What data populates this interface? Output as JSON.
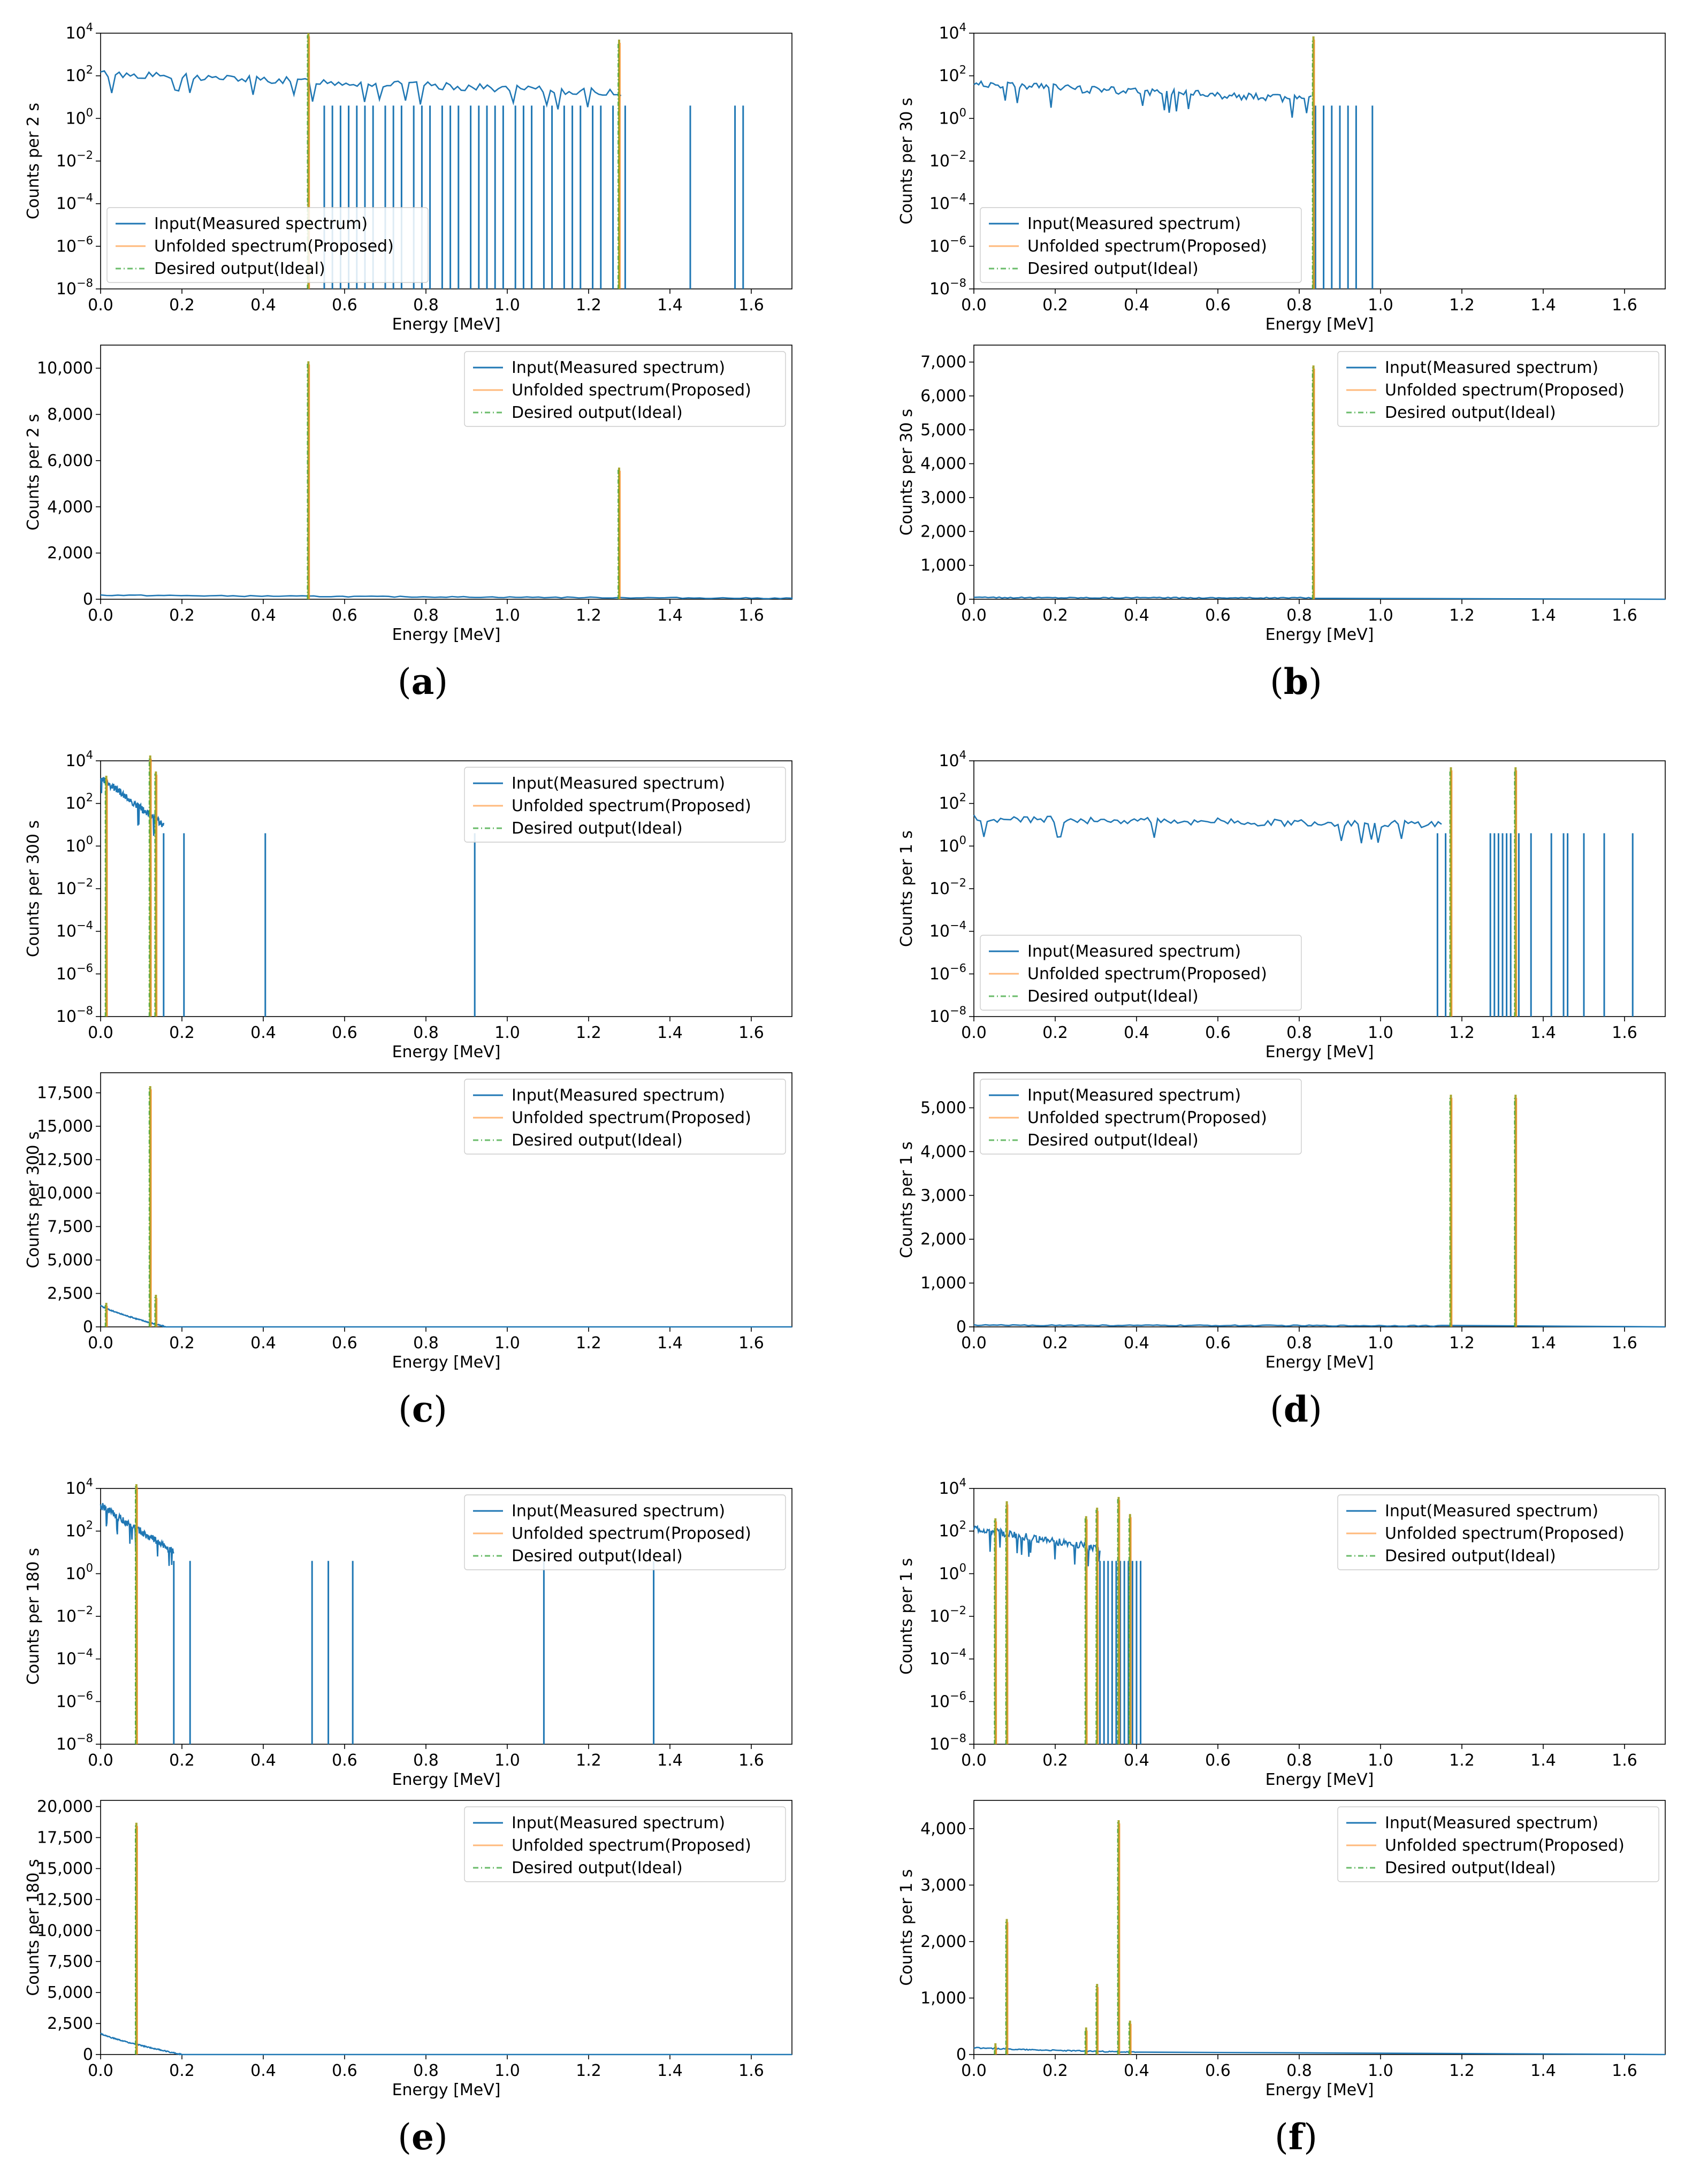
{
  "legend_labels": {
    "input": "Input(Measured spectrum)",
    "unfolded": "Unfolded spectrum(Proposed)",
    "desired": "Desired output(Ideal)"
  },
  "colors": {
    "input": "#1f77b4",
    "unfolded": "#ff7f0e",
    "desired": "#2ca02c",
    "overlap": "#a8a832"
  },
  "chart_data": [
    {
      "panel": "a",
      "label_open": "(",
      "label_letter": "a",
      "label_close": ")",
      "xlabel": "Energy [MeV]",
      "ylabel": "Counts per 2 s",
      "xlim": [
        0,
        1.7
      ],
      "xticks": [
        0,
        0.2,
        0.4,
        0.6,
        0.8,
        1.0,
        1.2,
        1.4,
        1.6
      ],
      "xtick_labels": [
        "0.0",
        "0.2",
        "0.4",
        "0.6",
        "0.8",
        "1.0",
        "1.2",
        "1.4",
        "1.6"
      ],
      "log_plot": {
        "type": "line",
        "yscale": "log",
        "ylim_exp": [
          -8,
          4
        ],
        "ytick_exps": [
          4,
          2,
          0,
          -2,
          -4,
          -6,
          -8
        ],
        "legend_loc": "lower-left",
        "input_background": {
          "start_exp": 2.1,
          "end_exp": 1.2,
          "end_energy": 1.28
        },
        "input_spikes": [
          0.55,
          0.57,
          0.59,
          0.61,
          0.63,
          0.65,
          0.67,
          0.7,
          0.72,
          0.74,
          0.77,
          0.79,
          0.81,
          0.84,
          0.86,
          0.88,
          0.91,
          0.93,
          0.95,
          0.97,
          0.99,
          1.02,
          1.04,
          1.06,
          1.09,
          1.11,
          1.14,
          1.16,
          1.18,
          1.21,
          1.23,
          1.26,
          1.29,
          1.45,
          1.56,
          1.58
        ],
        "peaks": [
          {
            "energy": 0.511,
            "exp": 4.0
          },
          {
            "energy": 1.275,
            "exp": 3.7
          }
        ]
      },
      "linear_plot": {
        "type": "line",
        "yscale": "linear",
        "ylim": [
          0,
          11000
        ],
        "yticks": [
          0,
          2000,
          4000,
          6000,
          8000,
          10000
        ],
        "ytick_labels": [
          "0",
          "2,000",
          "4,000",
          "6,000",
          "8,000",
          "10,000"
        ],
        "legend_loc": "top-right",
        "input_baseline": {
          "start": 180,
          "end": 40,
          "end_energy": 1.7
        },
        "peaks": [
          {
            "energy": 0.511,
            "value": 10300
          },
          {
            "energy": 1.275,
            "value": 5700
          }
        ]
      }
    },
    {
      "panel": "b",
      "label_open": "(",
      "label_letter": "b",
      "label_close": ")",
      "xlabel": "Energy [MeV]",
      "ylabel": "Counts per 30 s",
      "xlim": [
        0,
        1.7
      ],
      "xticks": [
        0,
        0.2,
        0.4,
        0.6,
        0.8,
        1.0,
        1.2,
        1.4,
        1.6
      ],
      "xtick_labels": [
        "0.0",
        "0.2",
        "0.4",
        "0.6",
        "0.8",
        "1.0",
        "1.2",
        "1.4",
        "1.6"
      ],
      "log_plot": {
        "type": "line",
        "yscale": "log",
        "ylim_exp": [
          -8,
          4
        ],
        "ytick_exps": [
          4,
          2,
          0,
          -2,
          -4,
          -6,
          -8
        ],
        "legend_loc": "lower-left",
        "input_background": {
          "start_exp": 1.6,
          "end_exp": 0.9,
          "end_energy": 0.83
        },
        "input_spikes": [
          0.84,
          0.86,
          0.88,
          0.9,
          0.92,
          0.94,
          0.98
        ],
        "peaks": [
          {
            "energy": 0.835,
            "exp": 3.85
          }
        ]
      },
      "linear_plot": {
        "type": "line",
        "yscale": "linear",
        "ylim": [
          0,
          7500
        ],
        "yticks": [
          0,
          1000,
          2000,
          3000,
          4000,
          5000,
          6000,
          7000
        ],
        "ytick_labels": [
          "0",
          "1,000",
          "2,000",
          "3,000",
          "4,000",
          "5,000",
          "6,000",
          "7,000"
        ],
        "legend_loc": "top-right",
        "input_baseline": {
          "start": 50,
          "end": 40,
          "end_energy": 0.83
        },
        "peaks": [
          {
            "energy": 0.835,
            "value": 6900
          }
        ]
      }
    },
    {
      "panel": "c",
      "label_open": "(",
      "label_letter": "c",
      "label_close": ")",
      "xlabel": "Energy [MeV]",
      "ylabel": "Counts per 300 s",
      "xlim": [
        0,
        1.7
      ],
      "xticks": [
        0,
        0.2,
        0.4,
        0.6,
        0.8,
        1.0,
        1.2,
        1.4,
        1.6
      ],
      "xtick_labels": [
        "0.0",
        "0.2",
        "0.4",
        "0.6",
        "0.8",
        "1.0",
        "1.2",
        "1.4",
        "1.6"
      ],
      "log_plot": {
        "type": "line",
        "yscale": "log",
        "ylim_exp": [
          -8,
          4
        ],
        "ytick_exps": [
          4,
          2,
          0,
          -2,
          -4,
          -6,
          -8
        ],
        "legend_loc": "top-right",
        "input_background": {
          "start_exp": 3.2,
          "end_exp": 1.0,
          "end_energy": 0.155
        },
        "input_spikes": [
          0.155,
          0.205,
          0.405,
          0.92
        ],
        "peaks": [
          {
            "energy": 0.014,
            "exp": 3.3
          },
          {
            "energy": 0.122,
            "exp": 4.25
          },
          {
            "energy": 0.136,
            "exp": 3.5
          }
        ]
      },
      "linear_plot": {
        "type": "line",
        "yscale": "linear",
        "ylim": [
          0,
          19000
        ],
        "yticks": [
          0,
          2500,
          5000,
          7500,
          10000,
          12500,
          15000,
          17500
        ],
        "ytick_labels": [
          "0",
          "2,500",
          "5,000",
          "7,500",
          "10,000",
          "12,500",
          "15,000",
          "17,500"
        ],
        "legend_loc": "top-right",
        "input_baseline": {
          "start": 1600,
          "end": 0,
          "end_energy": 0.16
        },
        "peaks": [
          {
            "energy": 0.014,
            "value": 1800
          },
          {
            "energy": 0.122,
            "value": 18000
          },
          {
            "energy": 0.136,
            "value": 2400
          }
        ]
      }
    },
    {
      "panel": "d",
      "label_open": "(",
      "label_letter": "d",
      "label_close": ")",
      "xlabel": "Energy [MeV]",
      "ylabel": "Counts per 1 s",
      "xlim": [
        0,
        1.7
      ],
      "xticks": [
        0,
        0.2,
        0.4,
        0.6,
        0.8,
        1.0,
        1.2,
        1.4,
        1.6
      ],
      "xtick_labels": [
        "0.0",
        "0.2",
        "0.4",
        "0.6",
        "0.8",
        "1.0",
        "1.2",
        "1.4",
        "1.6"
      ],
      "log_plot": {
        "type": "line",
        "yscale": "log",
        "ylim_exp": [
          -8,
          4
        ],
        "ytick_exps": [
          4,
          2,
          0,
          -2,
          -4,
          -6,
          -8
        ],
        "legend_loc": "lower-left",
        "input_background": {
          "start_exp": 1.3,
          "end_exp": 1.0,
          "end_energy": 1.15
        },
        "input_spikes": [
          1.14,
          1.16,
          1.27,
          1.28,
          1.29,
          1.3,
          1.31,
          1.32,
          1.34,
          1.37,
          1.42,
          1.45,
          1.46,
          1.5,
          1.55,
          1.62
        ],
        "peaks": [
          {
            "energy": 1.173,
            "exp": 3.7
          },
          {
            "energy": 1.332,
            "exp": 3.7
          }
        ]
      },
      "linear_plot": {
        "type": "line",
        "yscale": "linear",
        "ylim": [
          0,
          5800
        ],
        "yticks": [
          0,
          1000,
          2000,
          3000,
          4000,
          5000
        ],
        "ytick_labels": [
          "0",
          "1,000",
          "2,000",
          "3,000",
          "4,000",
          "5,000"
        ],
        "legend_loc": "top-left",
        "input_baseline": {
          "start": 40,
          "end": 25,
          "end_energy": 1.15
        },
        "peaks": [
          {
            "energy": 1.173,
            "value": 5300
          },
          {
            "energy": 1.332,
            "value": 5300
          }
        ]
      }
    },
    {
      "panel": "e",
      "label_open": "(",
      "label_letter": "e",
      "label_close": ")",
      "xlabel": "Energy [MeV]",
      "ylabel": "Counts per 180 s",
      "xlim": [
        0,
        1.7
      ],
      "xticks": [
        0,
        0.2,
        0.4,
        0.6,
        0.8,
        1.0,
        1.2,
        1.4,
        1.6
      ],
      "xtick_labels": [
        "0.0",
        "0.2",
        "0.4",
        "0.6",
        "0.8",
        "1.0",
        "1.2",
        "1.4",
        "1.6"
      ],
      "log_plot": {
        "type": "line",
        "yscale": "log",
        "ylim_exp": [
          -8,
          4
        ],
        "ytick_exps": [
          4,
          2,
          0,
          -2,
          -4,
          -6,
          -8
        ],
        "legend_loc": "top-right",
        "input_background": {
          "start_exp": 3.2,
          "end_exp": 1.0,
          "end_energy": 0.18
        },
        "input_spikes": [
          0.18,
          0.22,
          0.52,
          0.56,
          0.62,
          1.09,
          1.36
        ],
        "peaks": [
          {
            "energy": 0.088,
            "exp": 4.2
          }
        ]
      },
      "linear_plot": {
        "type": "line",
        "yscale": "linear",
        "ylim": [
          0,
          20500
        ],
        "yticks": [
          0,
          2500,
          5000,
          7500,
          10000,
          12500,
          15000,
          17500,
          20000
        ],
        "ytick_labels": [
          "0",
          "2,500",
          "5,000",
          "7,500",
          "10,000",
          "12,500",
          "15,000",
          "17,500",
          "20,000"
        ],
        "legend_loc": "top-right",
        "input_baseline": {
          "start": 1700,
          "end": 0,
          "end_energy": 0.2
        },
        "peaks": [
          {
            "energy": 0.088,
            "value": 18700
          }
        ]
      }
    },
    {
      "panel": "f",
      "label_open": "(",
      "label_letter": "f",
      "label_close": ")",
      "xlabel": "Energy [MeV]",
      "ylabel": "Counts per 1 s",
      "xlim": [
        0,
        1.7
      ],
      "xticks": [
        0,
        0.2,
        0.4,
        0.6,
        0.8,
        1.0,
        1.2,
        1.4,
        1.6
      ],
      "xtick_labels": [
        "0.0",
        "0.2",
        "0.4",
        "0.6",
        "0.8",
        "1.0",
        "1.2",
        "1.4",
        "1.6"
      ],
      "log_plot": {
        "type": "line",
        "yscale": "log",
        "ylim_exp": [
          -8,
          4
        ],
        "ytick_exps": [
          4,
          2,
          0,
          -2,
          -4,
          -6,
          -8
        ],
        "legend_loc": "top-right",
        "input_background": {
          "start_exp": 2.1,
          "end_exp": 1.2,
          "end_energy": 0.31
        },
        "input_spikes": [
          0.31,
          0.32,
          0.33,
          0.34,
          0.35,
          0.36,
          0.37,
          0.38,
          0.39,
          0.4,
          0.41
        ],
        "peaks": [
          {
            "energy": 0.053,
            "exp": 2.6
          },
          {
            "energy": 0.081,
            "exp": 3.4
          },
          {
            "energy": 0.276,
            "exp": 2.7
          },
          {
            "energy": 0.303,
            "exp": 3.1
          },
          {
            "energy": 0.356,
            "exp": 3.6
          },
          {
            "energy": 0.384,
            "exp": 2.8
          }
        ]
      },
      "linear_plot": {
        "type": "line",
        "yscale": "linear",
        "ylim": [
          0,
          4500
        ],
        "yticks": [
          0,
          1000,
          2000,
          3000,
          4000
        ],
        "ytick_labels": [
          "0",
          "1,000",
          "2,000",
          "3,000",
          "4,000"
        ],
        "legend_loc": "top-right",
        "input_baseline": {
          "start": 120,
          "end": 40,
          "end_energy": 0.4
        },
        "peaks": [
          {
            "energy": 0.053,
            "value": 200
          },
          {
            "energy": 0.081,
            "value": 2400
          },
          {
            "energy": 0.276,
            "value": 480
          },
          {
            "energy": 0.303,
            "value": 1250
          },
          {
            "energy": 0.356,
            "value": 4150
          },
          {
            "energy": 0.384,
            "value": 600
          }
        ]
      }
    }
  ]
}
